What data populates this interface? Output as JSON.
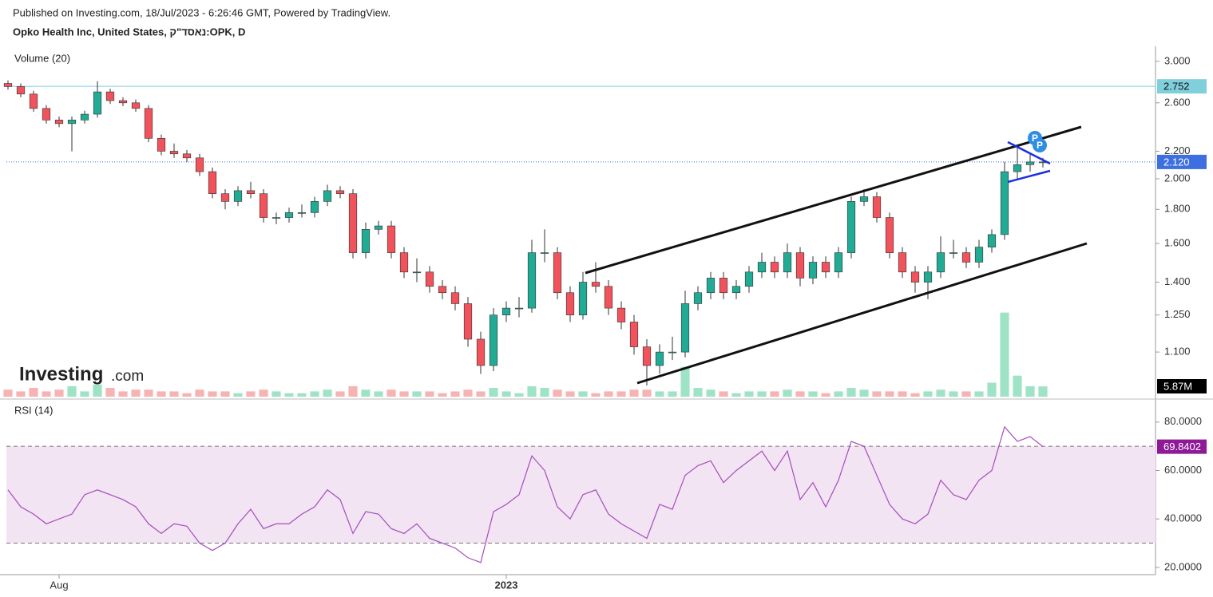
{
  "header": {
    "published": "Published on Investing.com, 18/Jul/2023 - 6:26:46 GMT, Powered by TradingView.",
    "symbol": "Opko Health Inc, United States, נאסד\"ק:OPK, D"
  },
  "logo": [
    "Investing",
    ".com"
  ],
  "markers": [
    "P",
    "P"
  ],
  "chart_data": {
    "type": "candlestick",
    "log_scale": true,
    "ylim": [
      0.943,
      3.16
    ],
    "yticks": [
      {
        "value": 1.1,
        "label": "1.100"
      },
      {
        "value": 1.25,
        "label": "1.250"
      },
      {
        "value": 1.4,
        "label": "1.400"
      },
      {
        "value": 1.6,
        "label": "1.600"
      },
      {
        "value": 1.8,
        "label": "1.800"
      },
      {
        "value": 2,
        "label": "2.000"
      },
      {
        "value": 2.2,
        "label": "2.200"
      },
      {
        "value": 2.6,
        "label": "2.600"
      },
      {
        "value": 3,
        "label": "3.000"
      }
    ],
    "xticks": [
      {
        "value": 4,
        "label": "Aug"
      },
      {
        "value": 39,
        "label": "2023"
      }
    ],
    "up_color": "#22ab94",
    "down_color": "#f0535b",
    "open": [
      2.78,
      2.75,
      2.68,
      2.55,
      2.45,
      2.42,
      2.45,
      2.5,
      2.7,
      2.62,
      2.6,
      2.55,
      2.3,
      2.2,
      2.18,
      2.15,
      2.05,
      1.9,
      1.85,
      1.92,
      1.9,
      1.75,
      1.75,
      1.78,
      1.78,
      1.85,
      1.92,
      1.9,
      1.55,
      1.68,
      1.7,
      1.55,
      1.45,
      1.45,
      1.38,
      1.35,
      1.3,
      1.15,
      1.05,
      1.25,
      1.28,
      1.28,
      1.55,
      1.55,
      1.35,
      1.25,
      1.4,
      1.38,
      1.28,
      1.22,
      1.12,
      1.05,
      1.1,
      1.1,
      1.3,
      1.35,
      1.42,
      1.35,
      1.38,
      1.45,
      1.5,
      1.45,
      1.55,
      1.42,
      1.5,
      1.45,
      1.55,
      1.85,
      1.88,
      1.75,
      1.55,
      1.45,
      1.4,
      1.45,
      1.55,
      1.55,
      1.5,
      1.58,
      1.65,
      2.05,
      2.1,
      2.12
    ],
    "high": [
      2.81,
      2.78,
      2.71,
      2.58,
      2.48,
      2.48,
      2.53,
      2.8,
      2.73,
      2.65,
      2.63,
      2.58,
      2.33,
      2.26,
      2.21,
      2.18,
      2.08,
      1.93,
      1.95,
      1.98,
      1.93,
      1.78,
      1.81,
      1.83,
      1.88,
      1.96,
      1.95,
      1.93,
      1.72,
      1.73,
      1.73,
      1.58,
      1.52,
      1.48,
      1.41,
      1.38,
      1.33,
      1.18,
      1.28,
      1.31,
      1.33,
      1.62,
      1.68,
      1.58,
      1.38,
      1.45,
      1.5,
      1.41,
      1.31,
      1.25,
      1.15,
      1.13,
      1.16,
      1.36,
      1.38,
      1.45,
      1.45,
      1.41,
      1.48,
      1.55,
      1.53,
      1.6,
      1.58,
      1.53,
      1.53,
      1.58,
      1.88,
      1.93,
      1.91,
      1.78,
      1.58,
      1.48,
      1.48,
      1.64,
      1.62,
      1.58,
      1.62,
      1.68,
      2.12,
      2.25,
      2.18,
      2.15
    ],
    "low": [
      2.72,
      2.65,
      2.52,
      2.42,
      2.39,
      2.2,
      2.42,
      2.47,
      2.59,
      2.57,
      2.52,
      2.27,
      2.17,
      2.15,
      2.12,
      2.02,
      1.87,
      1.8,
      1.82,
      1.87,
      1.72,
      1.71,
      1.72,
      1.75,
      1.75,
      1.82,
      1.87,
      1.52,
      1.52,
      1.65,
      1.52,
      1.42,
      1.4,
      1.35,
      1.32,
      1.27,
      1.12,
      1.02,
      1.03,
      1.22,
      1.24,
      1.26,
      1.5,
      1.32,
      1.22,
      1.23,
      1.35,
      1.25,
      1.19,
      1.09,
      0.98,
      1.02,
      1.07,
      1.08,
      1.27,
      1.32,
      1.32,
      1.32,
      1.35,
      1.42,
      1.42,
      1.42,
      1.38,
      1.39,
      1.42,
      1.42,
      1.52,
      1.82,
      1.72,
      1.52,
      1.42,
      1.35,
      1.32,
      1.42,
      1.52,
      1.47,
      1.47,
      1.55,
      1.62,
      2.0,
      2.05,
      2.08
    ],
    "close": [
      2.75,
      2.68,
      2.55,
      2.45,
      2.42,
      2.45,
      2.5,
      2.7,
      2.62,
      2.6,
      2.55,
      2.3,
      2.2,
      2.18,
      2.15,
      2.05,
      1.9,
      1.85,
      1.92,
      1.9,
      1.75,
      1.75,
      1.78,
      1.78,
      1.85,
      1.92,
      1.9,
      1.55,
      1.68,
      1.7,
      1.55,
      1.45,
      1.45,
      1.38,
      1.35,
      1.3,
      1.15,
      1.05,
      1.25,
      1.28,
      1.28,
      1.55,
      1.55,
      1.35,
      1.25,
      1.4,
      1.38,
      1.28,
      1.22,
      1.12,
      1.05,
      1.1,
      1.1,
      1.3,
      1.35,
      1.42,
      1.35,
      1.38,
      1.45,
      1.5,
      1.45,
      1.55,
      1.42,
      1.5,
      1.45,
      1.55,
      1.85,
      1.88,
      1.75,
      1.55,
      1.45,
      1.4,
      1.45,
      1.55,
      1.55,
      1.5,
      1.58,
      1.65,
      2.05,
      2.1,
      2.12,
      2.12
    ],
    "high_line": {
      "value": 2.752,
      "label": "2.752",
      "color": "#7fd0dc"
    },
    "last_price": {
      "value": 2.12,
      "label": "2.120",
      "color": "#3d6fe0"
    },
    "volume": {
      "name": "Volume (20)",
      "ylim": [
        0,
        200
      ],
      "up_color": "#9fe3c6",
      "down_color": "#f6b3b3",
      "values": [
        4,
        3,
        5,
        3,
        4,
        6,
        3,
        7,
        5,
        3,
        4,
        4,
        3,
        3,
        2,
        4,
        3,
        3,
        2,
        3,
        4,
        3,
        2,
        2,
        3,
        4,
        3,
        6,
        4,
        3,
        4,
        3,
        3,
        3,
        2,
        3,
        4,
        3,
        5,
        3,
        2,
        6,
        5,
        4,
        3,
        3,
        2,
        3,
        3,
        4,
        4,
        3,
        3,
        17,
        5,
        4,
        3,
        2,
        3,
        3,
        3,
        4,
        3,
        3,
        2,
        3,
        5,
        4,
        3,
        3,
        3,
        2,
        3,
        4,
        3,
        3,
        3,
        8,
        48,
        12,
        6,
        5.87
      ],
      "last_label": "5.87M"
    },
    "rsi": {
      "name": "RSI (14)",
      "color": "#a54cbf",
      "band": [
        30,
        70
      ],
      "band_color": "#f2e4f2",
      "ylim": [
        17,
        88.5
      ],
      "yticks": [
        {
          "value": 20,
          "label": "20.0000"
        },
        {
          "value": 40,
          "label": "40.0000"
        },
        {
          "value": 60,
          "label": "60.0000"
        },
        {
          "value": 80,
          "label": "80.0000"
        }
      ],
      "values": [
        52,
        45,
        42,
        38,
        40,
        42,
        50,
        52,
        50,
        48,
        45,
        38,
        34,
        38,
        37,
        30,
        27,
        30,
        38,
        44,
        36,
        38,
        38,
        42,
        45,
        52,
        48,
        34,
        43,
        42,
        36,
        34,
        38,
        32,
        30,
        28,
        24,
        22,
        43,
        46,
        50,
        66,
        60,
        45,
        40,
        50,
        52,
        42,
        38,
        35,
        32,
        46,
        44,
        58,
        62,
        64,
        55,
        60,
        64,
        68,
        60,
        68,
        48,
        55,
        45,
        56,
        72,
        70,
        58,
        46,
        40,
        38,
        42,
        56,
        50,
        48,
        56,
        60,
        78,
        72,
        74,
        69.8402
      ]
    }
  }
}
